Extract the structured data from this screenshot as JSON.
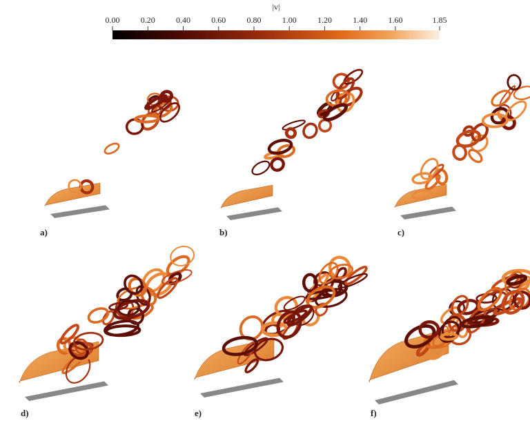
{
  "colorbar": {
    "title": "|v|",
    "lim": [
      0,
      1.85
    ],
    "ticks": [
      {
        "value": 0,
        "label": "0.00"
      },
      {
        "value": 0.2,
        "label": "0.20"
      },
      {
        "value": 0.4,
        "label": "0.40"
      },
      {
        "value": 0.6,
        "label": "0.60"
      },
      {
        "value": 0.8,
        "label": "0.80"
      },
      {
        "value": 1,
        "label": "1.00"
      },
      {
        "value": 1.2,
        "label": "1.20"
      },
      {
        "value": 1.4,
        "label": "1.40"
      },
      {
        "value": 1.6,
        "label": "1.60"
      },
      {
        "value": 1.85,
        "label": "1.85"
      }
    ]
  },
  "panels": [
    {
      "label": "a)"
    },
    {
      "label": "b)"
    },
    {
      "label": "c)"
    },
    {
      "label": "d)"
    },
    {
      "label": "e)"
    },
    {
      "label": "f)"
    }
  ]
}
